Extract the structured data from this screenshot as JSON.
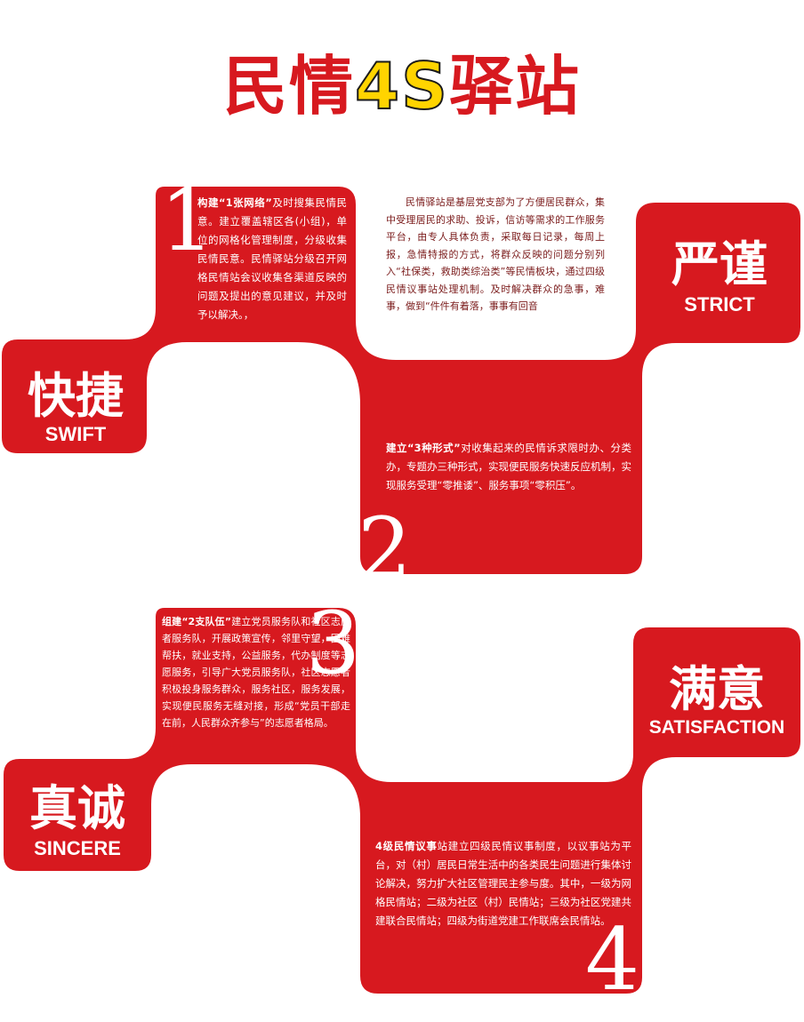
{
  "title": {
    "part1": "民情",
    "part2": "4S",
    "part3": "驿站"
  },
  "cards": {
    "swift": {
      "zh": "快捷",
      "en": "SWIFT",
      "number": "1",
      "lead": "构建“1张网络”",
      "text": "及时搜集民情民意。建立覆盖辖区各(小组)，单位的网格化管理制度，分级收集民情民意。民情驿站分级召开网格民情站会议收集各渠道反映的问题及提出的意见建议，并及时予以解决。，"
    },
    "intro": {
      "text": "民情驿站是基层党支部为了方便居民群众，集中受理居民的求助、投诉，信访等需求的工作服务平台，由专人具体负责，采取每日记录，每周上报，急情特报的方式，将群众反映的问题分别列入“社保类，救助类综治类”等民情板块，通过四级民情议事站处理机制。及时解决群众的急事，难事，做到“件件有着落，事事有回音"
    },
    "strict": {
      "zh": "严谨",
      "en": "STRICT",
      "number": "2",
      "lead": "建立“3种形式”",
      "text": "对收集起来的民情诉求限时办、分类办，专题办三种形式，实现便民服务快速反应机制，实现服务受理“零推诿”、服务事项“零积压”。"
    },
    "sincere": {
      "zh": "真诚",
      "en": "SINCERE",
      "number": "3",
      "lead": "组建“2支队伍”",
      "text": "建立党员服务队和社区志愿者服务队，开展政策宣传，邻里守望，困难帮扶，就业支持，公益服务，代办制度等志愿服务，引导广大党员服务队，社区志愿者积极投身服务群众，服务社区，服务发展，实现便民服务无缝对接，形成“党员干部走在前，人民群众齐参与”的志愿者格局。"
    },
    "satisfaction": {
      "zh": "满意",
      "en": "SATISFACTION",
      "number": "4",
      "lead": "4级民情议事",
      "text": "站建立四级民情议事制度，以议事站为平台，对（村）居民日常生活中的各类民生问题进行集体讨论解决，努力扩大社区管理民主参与度。其中，一级为网格民情站；二级为社区（村）民情站；三级为社区党建共建联合民情站；四级为街道党建工作联席会民情站。"
    }
  }
}
